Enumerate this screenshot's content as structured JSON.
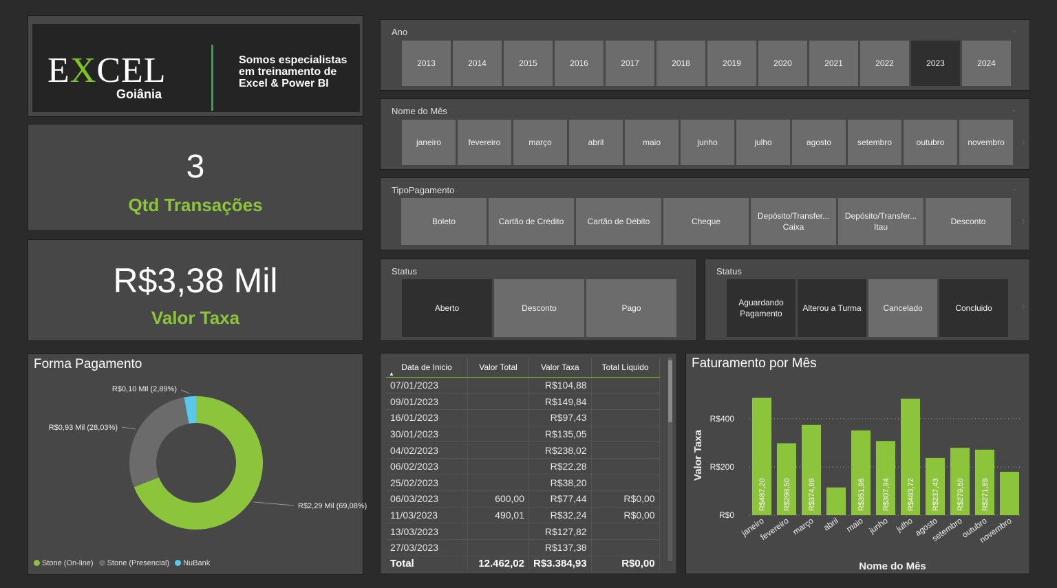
{
  "logo": {
    "word_e": "E",
    "word_x": "X",
    "word_rest": "CEL",
    "city": "Goiânia",
    "tagline": "Somos especialistas em treinamento de Excel & Power BI"
  },
  "kpi_transacoes": {
    "value": "3",
    "label": "Qtd Transações"
  },
  "kpi_taxa": {
    "value": "R$3,38 Mil",
    "label": "Valor Taxa"
  },
  "slicer_ano": {
    "title": "Ano",
    "items": [
      "2013",
      "2014",
      "2015",
      "2016",
      "2017",
      "2018",
      "2019",
      "2020",
      "2021",
      "2022",
      "2023",
      "2024"
    ],
    "selected": "2023"
  },
  "slicer_mes": {
    "title": "Nome do Mês",
    "items": [
      "janeiro",
      "fevereiro",
      "março",
      "abril",
      "maio",
      "junho",
      "julho",
      "agosto",
      "setembro",
      "outubro",
      "novembro"
    ]
  },
  "slicer_tipo": {
    "title": "TipoPagamento",
    "items": [
      "Boleto",
      "Cartão de Crédito",
      "Cartão de Débito",
      "Cheque",
      "Depósito/Transfer... Caixa",
      "Depósito/Transfer... Itau",
      "Desconto"
    ]
  },
  "slicer_status1": {
    "title": "Status",
    "items": [
      "Aberto",
      "Desconto",
      "Pago"
    ],
    "selected": "Aberto"
  },
  "slicer_status2": {
    "title": "Status",
    "items": [
      "Aguardando Pagamento",
      "Alterou a Turma",
      "Cancelado",
      "Concluido"
    ],
    "selected": [
      "Aguardando Pagamento",
      "Alterou a Turma",
      "Concluido"
    ]
  },
  "donut": {
    "title": "Forma Pagamento",
    "slices": [
      {
        "name": "Stone (On-line)",
        "value": 2.29,
        "pct": 69.08,
        "label": "R$2,29 Mil (69,08%)",
        "color": "#8cc43c"
      },
      {
        "name": "Stone (Presencial)",
        "value": 0.93,
        "pct": 28.03,
        "label": "R$0,93 Mil (28,03%)",
        "color": "#6b6b6b"
      },
      {
        "name": "NuBank",
        "value": 0.1,
        "pct": 2.89,
        "label": "R$0,10 Mil (2,89%)",
        "color": "#5bc8ea"
      }
    ]
  },
  "table": {
    "columns": [
      "Data de Inicio",
      "Valor Total",
      "Valor Taxa",
      "Total Líquido"
    ],
    "rows": [
      [
        "07/01/2023",
        "",
        "R$104,88",
        ""
      ],
      [
        "09/01/2023",
        "",
        "R$149,84",
        ""
      ],
      [
        "16/01/2023",
        "",
        "R$97,43",
        ""
      ],
      [
        "30/01/2023",
        "",
        "R$135,05",
        ""
      ],
      [
        "04/02/2023",
        "",
        "R$238,02",
        ""
      ],
      [
        "06/02/2023",
        "",
        "R$22,28",
        ""
      ],
      [
        "25/02/2023",
        "",
        "R$38,20",
        ""
      ],
      [
        "06/03/2023",
        "600,00",
        "R$77,44",
        "R$0,00"
      ],
      [
        "11/03/2023",
        "490,01",
        "R$32,24",
        "R$0,00"
      ],
      [
        "13/03/2023",
        "",
        "R$127,82",
        ""
      ],
      [
        "27/03/2023",
        "",
        "R$137,38",
        ""
      ]
    ],
    "total": [
      "Total",
      "12.462,02",
      "R$3.384,93",
      "R$0,00"
    ],
    "sort_icon": "triangle-up"
  },
  "chart_data": {
    "type": "bar",
    "title": "Faturamento por Mês",
    "xlabel": "Nome do Mês",
    "ylabel": "Valor Taxa",
    "categories": [
      "janeiro",
      "fevereiro",
      "março",
      "abril",
      "maio",
      "junho",
      "julho",
      "agosto",
      "setembro",
      "outubro",
      "novembro"
    ],
    "values": [
      487.2,
      298.5,
      374.88,
      115,
      351.96,
      307.94,
      483.72,
      237.43,
      279.6,
      271.89,
      180
    ],
    "data_labels": [
      "R$487,20",
      "R$298,50",
      "R$374,88",
      "",
      "R$351,96",
      "R$307,94",
      "R$483,72",
      "R$237,43",
      "R$279,60",
      "R$271,89",
      ""
    ],
    "yticks": [
      0,
      200,
      400
    ],
    "ytick_labels": [
      "R$0",
      "R$200",
      "R$400"
    ],
    "ylim": [
      0,
      500
    ],
    "grid": true,
    "color": "#8cc43c"
  }
}
